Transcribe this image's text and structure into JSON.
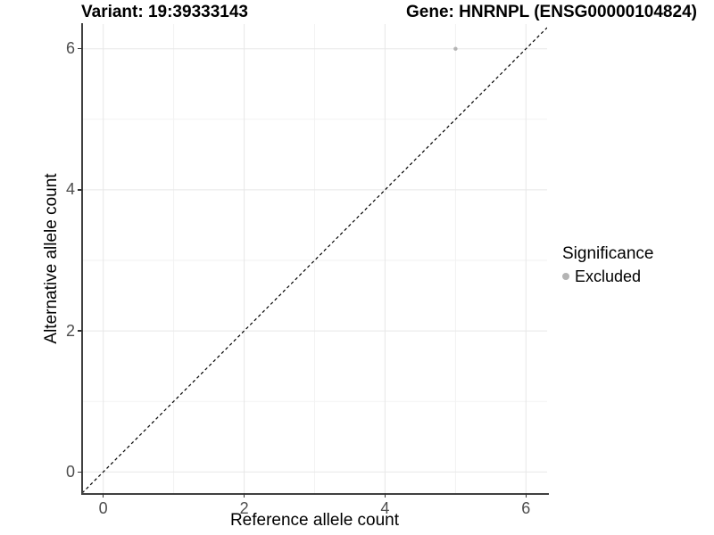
{
  "chart_data": {
    "type": "scatter",
    "title_left": "Variant: 19:39333143",
    "title_right": "Gene: HNRNPL (ENSG00000104824)",
    "xlabel": "Reference allele count",
    "ylabel": "Alternative allele count",
    "xlim": [
      -0.3,
      6.3
    ],
    "ylim": [
      -0.3,
      6.35
    ],
    "x_ticks": [
      0,
      2,
      4,
      6
    ],
    "y_ticks": [
      0,
      2,
      4,
      6
    ],
    "x_tick_labels": [
      "0",
      "2",
      "4",
      "6"
    ],
    "y_tick_labels": [
      "0",
      "2",
      "4",
      "6"
    ],
    "x_minor_gridlines": [
      1,
      3,
      5
    ],
    "y_minor_gridlines": [
      1,
      3,
      5
    ],
    "grid": "on",
    "series": [
      {
        "name": "Excluded",
        "color": "#b4b4b4",
        "points": [
          {
            "x": 5,
            "y": 6
          }
        ]
      }
    ],
    "reference_line": {
      "kind": "abline",
      "slope": 1,
      "intercept": 0,
      "style": "dashed",
      "color": "#000000"
    },
    "legend": {
      "position": "right",
      "title": "Significance",
      "items": [
        {
          "label": "Excluded",
          "color": "#b4b4b4"
        }
      ]
    },
    "style_colors": {
      "background": "#ffffff",
      "grid_major": "#e7e7e7",
      "grid_minor": "#f2f2f2",
      "axis_line": "#404040",
      "tick_mark": "#333333",
      "tick_label": "#4d4d4d",
      "text": "#000000"
    }
  }
}
